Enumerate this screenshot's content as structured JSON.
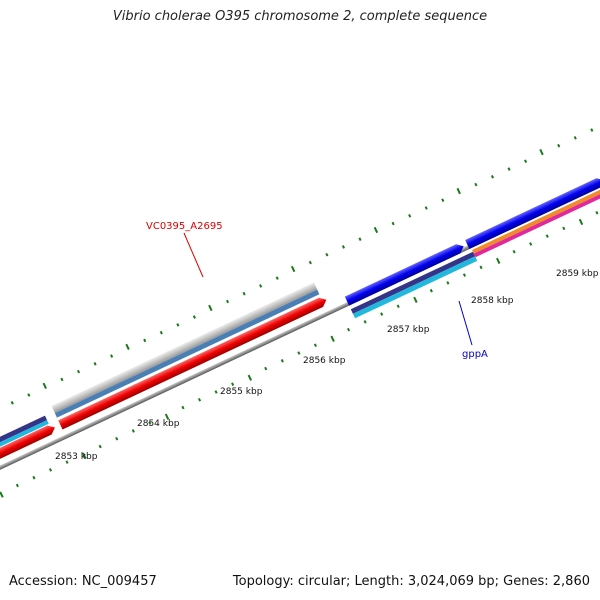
{
  "title": "Vibrio cholerae O395 chromosome 2, complete sequence",
  "footer": {
    "accession": "Accession: NC_009457",
    "topology": "Topology: circular; Length: 3,024,069 bp; Genes: 2,860"
  },
  "ticks": [
    "2853 kbp",
    "2854 kbp",
    "2855 kbp",
    "2856 kbp",
    "2857 kbp",
    "2858 kbp",
    "2859 kbp"
  ],
  "genes": [
    {
      "name": "VC0395_A2695",
      "color": "#dd0000"
    },
    {
      "name": "gppA",
      "color": "#0000cc"
    }
  ],
  "colors": {
    "backbone": "#777777",
    "tick_mark": "#1a7a1a",
    "cds_forward": "#0000ee",
    "cds_reverse": "#ee0000",
    "track_gray": "#b5b5b5",
    "track_steelblue": "#4a7fb5",
    "track_darkblue": "#343488",
    "track_cyan": "#22b8dd",
    "track_orange": "#f08a2a",
    "track_pink": "#e02a9a"
  }
}
